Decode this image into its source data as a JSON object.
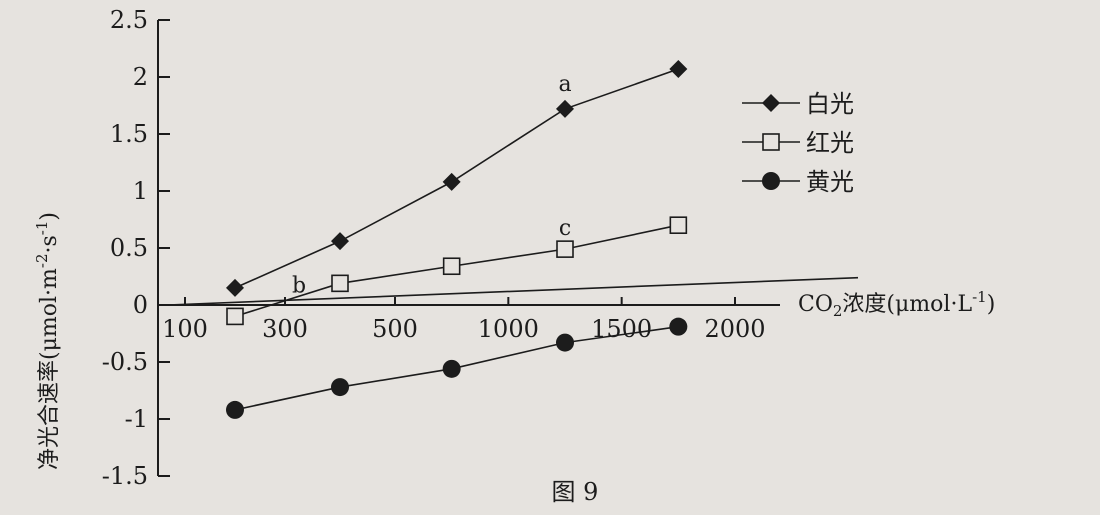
{
  "chart_data": {
    "type": "line",
    "caption": "图 9",
    "xlabel_prefix": "CO",
    "xlabel_sub": "2",
    "xlabel_suffix": "浓度(μmol·L",
    "xlabel_sup": "-1",
    "xlabel_close": ")",
    "ylabel_main": "净光合速率(μmol·m",
    "ylabel_sup1": "-2",
    "ylabel_mid": "·s",
    "ylabel_sup2": "-1",
    "ylabel_close": ")",
    "xlim": [
      100,
      2400
    ],
    "ylim": [
      -1.5,
      2.5
    ],
    "xticks": [
      {
        "value": 100,
        "label": "100"
      },
      {
        "value": 300,
        "label": "300"
      },
      {
        "value": 500,
        "label": "500"
      },
      {
        "value": 1000,
        "label": "1000"
      },
      {
        "value": 1500,
        "label": "1500"
      },
      {
        "value": 2000,
        "label": "2000"
      }
    ],
    "yticks": [
      {
        "value": 2.5,
        "label": "2.5"
      },
      {
        "value": 2,
        "label": "2"
      },
      {
        "value": 1.5,
        "label": "1.5"
      },
      {
        "value": 1,
        "label": "1"
      },
      {
        "value": 0.5,
        "label": "0.5"
      },
      {
        "value": 0,
        "label": "0"
      },
      {
        "value": -0.5,
        "label": "-0.5"
      },
      {
        "value": -1,
        "label": "-1"
      },
      {
        "value": -1.5,
        "label": "-1.5"
      }
    ],
    "series": [
      {
        "name": "白光",
        "marker": "diamond",
        "x": [
          200,
          400,
          750,
          1250,
          1750
        ],
        "y": [
          0.15,
          0.56,
          1.08,
          1.72,
          2.07
        ]
      },
      {
        "name": "红光",
        "marker": "square-open",
        "x": [
          200,
          400,
          750,
          1250,
          1750
        ],
        "y": [
          -0.1,
          0.19,
          0.34,
          0.49,
          0.7
        ]
      },
      {
        "name": "黄光",
        "marker": "circle",
        "x": [
          200,
          400,
          750,
          1250,
          1750
        ],
        "y": [
          -0.92,
          -0.72,
          -0.56,
          -0.33,
          -0.19
        ]
      }
    ],
    "reference_line": {
      "x": [
        100,
        2400
      ],
      "y": [
        0,
        0.24
      ]
    },
    "annotations": [
      {
        "text": "a",
        "x": 1250,
        "y": 1.72
      },
      {
        "text": "b",
        "x": 300,
        "y": 0.02
      },
      {
        "text": "c",
        "x": 1250,
        "y": 0.49
      }
    ],
    "legend_position": "top-right",
    "grid": false,
    "colors": {
      "ink": "#1c1c1c",
      "paper": "#e6e3df"
    }
  }
}
